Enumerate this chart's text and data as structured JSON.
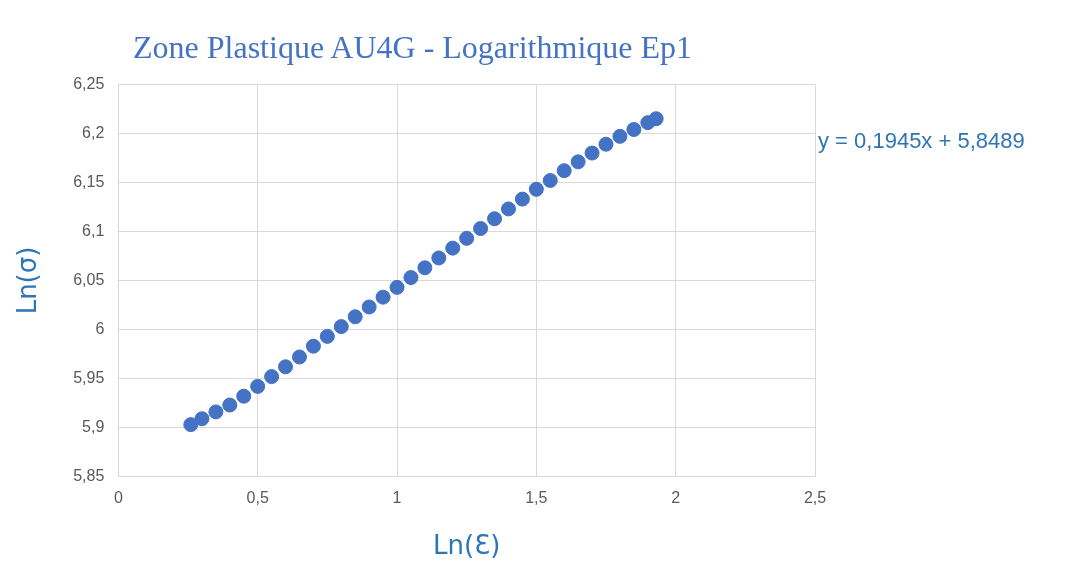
{
  "chart_data": {
    "type": "scatter",
    "title": "Zone Plastique AU4G - Logarithmique Ep1",
    "xlabel": "Ln(Ɛ)",
    "ylabel": "Ln(σ)",
    "x": [
      0.26,
      0.3,
      0.35,
      0.4,
      0.45,
      0.5,
      0.55,
      0.6,
      0.65,
      0.7,
      0.75,
      0.8,
      0.85,
      0.9,
      0.95,
      1.0,
      1.05,
      1.1,
      1.15,
      1.2,
      1.25,
      1.3,
      1.35,
      1.4,
      1.45,
      1.5,
      1.55,
      1.6,
      1.65,
      1.7,
      1.75,
      1.8,
      1.85,
      1.9,
      1.93
    ],
    "series": [
      {
        "color": "#4472c4",
        "values": [
          5.903,
          5.909,
          5.916,
          5.923,
          5.932,
          5.942,
          5.952,
          5.962,
          5.972,
          5.983,
          5.993,
          6.003,
          6.013,
          6.023,
          6.033,
          6.043,
          6.053,
          6.063,
          6.073,
          6.083,
          6.093,
          6.103,
          6.113,
          6.123,
          6.133,
          6.143,
          6.152,
          6.162,
          6.171,
          6.18,
          6.189,
          6.197,
          6.204,
          6.211,
          6.215
        ]
      }
    ],
    "xlim": [
      0,
      2.5
    ],
    "xticks": [
      0,
      {
        "value": 0.5,
        "label": "0,5"
      },
      1,
      {
        "value": 1.5,
        "label": "1,5"
      },
      2,
      {
        "value": 2.5,
        "label": "2,5"
      }
    ],
    "ylim": [
      5.85,
      6.25
    ],
    "yticks": [
      {
        "value": 5.85,
        "label": "5,85"
      },
      {
        "value": 5.9,
        "label": "5,9"
      },
      {
        "value": 5.95,
        "label": "5,95"
      },
      6,
      {
        "value": 6.05,
        "label": "6,05"
      },
      {
        "value": 6.1,
        "label": "6,1"
      },
      {
        "value": 6.15,
        "label": "6,15"
      },
      {
        "value": 6.2,
        "label": "6,2"
      },
      {
        "value": 6.25,
        "label": "6,25"
      }
    ],
    "grid": true,
    "marker": "circle",
    "annotations": [
      "y = 0,1945x + 5,8489"
    ]
  }
}
